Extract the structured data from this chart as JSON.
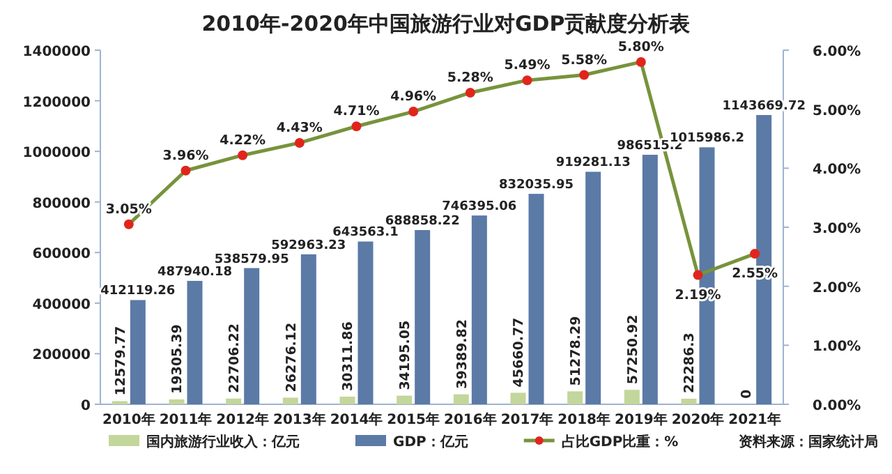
{
  "chart_data": {
    "type": "bar",
    "title": "2010年-2020年中国旅游行业对GDP贡献度分析表",
    "categories": [
      "2010年",
      "2011年",
      "2012年",
      "2013年",
      "2014年",
      "2015年",
      "2016年",
      "2017年",
      "2018年",
      "2019年",
      "2020年",
      "2021年"
    ],
    "ylim": [
      0,
      1400000
    ],
    "yticks": [
      0,
      200000,
      400000,
      600000,
      800000,
      1000000,
      1200000,
      1400000
    ],
    "y2lim": [
      0,
      6
    ],
    "y2ticks": [
      {
        "value": 0,
        "label": "0.00%"
      },
      {
        "value": 1,
        "label": "1.00%"
      },
      {
        "value": 2,
        "label": "2.00%"
      },
      {
        "value": 3,
        "label": "3.00%"
      },
      {
        "value": 4,
        "label": "4.00%"
      },
      {
        "value": 5,
        "label": "5.00%"
      },
      {
        "value": 6,
        "label": "6.00%"
      }
    ],
    "legend": "bottom",
    "annotations": [
      "资料来源：国家统计局"
    ],
    "series": [
      {
        "name": "国内旅游行业收入：亿元",
        "color": "#c3d69b",
        "values": [
          12579.77,
          19305.39,
          22706.22,
          26276.12,
          30311.86,
          34195.05,
          39389.82,
          45660.77,
          51278.29,
          57250.92,
          22286.3,
          0
        ],
        "value_labels": [
          "12579.77",
          "19305.39",
          "22706.22",
          "26276.12",
          "30311.86",
          "34195.05",
          "39389.82",
          "45660.77",
          "51278.29",
          "57250.92",
          "22286.3",
          "0"
        ]
      },
      {
        "name": "GDP：亿元",
        "color": "#5b7aa6",
        "values": [
          412119.26,
          487940.18,
          538579.95,
          592963.23,
          643563.1,
          688858.22,
          746395.06,
          832035.95,
          919281.13,
          986515.2,
          1015986.2,
          1143669.72
        ],
        "value_labels": [
          "412119.26",
          "487940.18",
          "538579.95",
          "592963.23",
          "643563.1",
          "688858.22",
          "746395.06",
          "832035.95",
          "919281.13",
          "986515.2",
          "1015986.2",
          "1143669.72"
        ]
      },
      {
        "name": "占比GDP比重：%",
        "type": "line",
        "axis": "y2",
        "marker": "circle",
        "color": "#77933c",
        "values": [
          3.05,
          3.96,
          4.22,
          4.43,
          4.71,
          4.96,
          5.28,
          5.49,
          5.58,
          5.8,
          2.19,
          2.55
        ],
        "value_labels": [
          "3.05%",
          "3.96%",
          "4.22%",
          "4.43%",
          "4.71%",
          "4.96%",
          "5.28%",
          "5.49%",
          "5.58%",
          "5.80%",
          "2.19%",
          "2.55%"
        ]
      }
    ]
  }
}
